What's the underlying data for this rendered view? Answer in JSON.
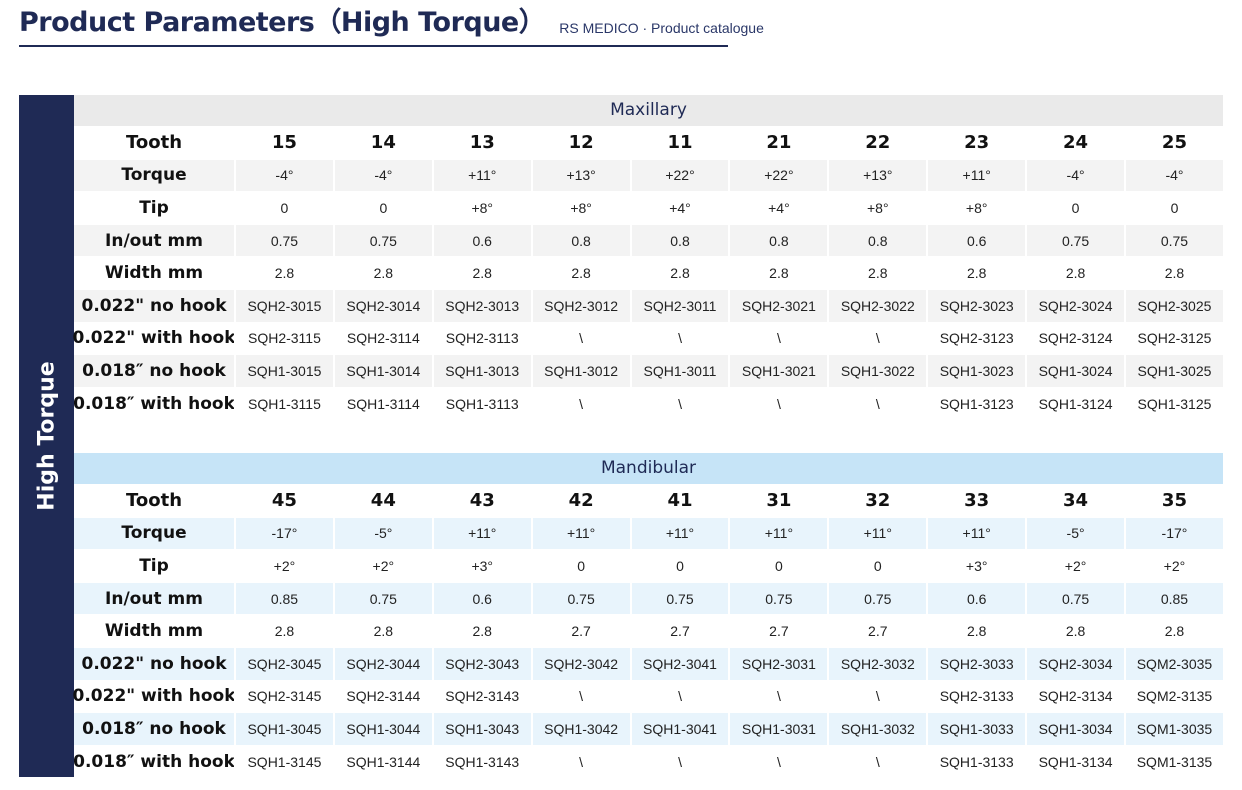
{
  "header": {
    "title": "Product Parameters（High Torque）",
    "subtitle": "RS MEDICO · Product catalogue"
  },
  "side_label": "High Torque",
  "maxillary": {
    "title": "Maxillary",
    "rows": [
      {
        "label": "Tooth",
        "cells": [
          "15",
          "14",
          "13",
          "12",
          "11",
          "21",
          "22",
          "23",
          "24",
          "25"
        ]
      },
      {
        "label": "Torque",
        "cells": [
          "-4°",
          "-4°",
          "+11°",
          "+13°",
          "+22°",
          "+22°",
          "+13°",
          "+11°",
          "-4°",
          "-4°"
        ]
      },
      {
        "label": "Tip",
        "cells": [
          "0",
          "0",
          "+8°",
          "+8°",
          "+4°",
          "+4°",
          "+8°",
          "+8°",
          "0",
          "0"
        ]
      },
      {
        "label": "In/out mm",
        "cells": [
          "0.75",
          "0.75",
          "0.6",
          "0.8",
          "0.8",
          "0.8",
          "0.8",
          "0.6",
          "0.75",
          "0.75"
        ]
      },
      {
        "label": "Width mm",
        "cells": [
          "2.8",
          "2.8",
          "2.8",
          "2.8",
          "2.8",
          "2.8",
          "2.8",
          "2.8",
          "2.8",
          "2.8"
        ]
      },
      {
        "label": "0.022\" no hook",
        "cells": [
          "SQH2-3015",
          "SQH2-3014",
          "SQH2-3013",
          "SQH2-3012",
          "SQH2-3011",
          "SQH2-3021",
          "SQH2-3022",
          "SQH2-3023",
          "SQH2-3024",
          "SQH2-3025"
        ]
      },
      {
        "label": "0.022\" with hook",
        "cells": [
          "SQH2-3115",
          "SQH2-3114",
          "SQH2-3113",
          "\\",
          "\\",
          "\\",
          "\\",
          "SQH2-3123",
          "SQH2-3124",
          "SQH2-3125"
        ]
      },
      {
        "label": "0.018″ no hook",
        "cells": [
          "SQH1-3015",
          "SQH1-3014",
          "SQH1-3013",
          "SQH1-3012",
          "SQH1-3011",
          "SQH1-3021",
          "SQH1-3022",
          "SQH1-3023",
          "SQH1-3024",
          "SQH1-3025"
        ]
      },
      {
        "label": "0.018″ with hook",
        "cells": [
          "SQH1-3115",
          "SQH1-3114",
          "SQH1-3113",
          "\\",
          "\\",
          "\\",
          "\\",
          "SQH1-3123",
          "SQH1-3124",
          "SQH1-3125"
        ]
      }
    ]
  },
  "mandibular": {
    "title": "Mandibular",
    "rows": [
      {
        "label": "Tooth",
        "cells": [
          "45",
          "44",
          "43",
          "42",
          "41",
          "31",
          "32",
          "33",
          "34",
          "35"
        ]
      },
      {
        "label": "Torque",
        "cells": [
          "-17°",
          "-5°",
          "+11°",
          "+11°",
          "+11°",
          "+11°",
          "+11°",
          "+11°",
          "-5°",
          "-17°"
        ]
      },
      {
        "label": "Tip",
        "cells": [
          "+2°",
          "+2°",
          "+3°",
          "0",
          "0",
          "0",
          "0",
          "+3°",
          "+2°",
          "+2°"
        ]
      },
      {
        "label": "In/out mm",
        "cells": [
          "0.85",
          "0.75",
          "0.6",
          "0.75",
          "0.75",
          "0.75",
          "0.75",
          "0.6",
          "0.75",
          "0.85"
        ]
      },
      {
        "label": "Width mm",
        "cells": [
          "2.8",
          "2.8",
          "2.8",
          "2.7",
          "2.7",
          "2.7",
          "2.7",
          "2.8",
          "2.8",
          "2.8"
        ]
      },
      {
        "label": "0.022\" no hook",
        "cells": [
          "SQH2-3045",
          "SQH2-3044",
          "SQH2-3043",
          "SQH2-3042",
          "SQH2-3041",
          "SQH2-3031",
          "SQH2-3032",
          "SQH2-3033",
          "SQH2-3034",
          "SQM2-3035"
        ]
      },
      {
        "label": "0.022\" with hook",
        "cells": [
          "SQH2-3145",
          "SQH2-3144",
          "SQH2-3143",
          "\\",
          "\\",
          "\\",
          "\\",
          "SQH2-3133",
          "SQH2-3134",
          "SQM2-3135"
        ]
      },
      {
        "label": "0.018″ no hook",
        "cells": [
          "SQH1-3045",
          "SQH1-3044",
          "SQH1-3043",
          "SQH1-3042",
          "SQH1-3041",
          "SQH1-3031",
          "SQH1-3032",
          "SQH1-3033",
          "SQH1-3034",
          "SQM1-3035"
        ]
      },
      {
        "label": "0.018″ with hook",
        "cells": [
          "SQH1-3145",
          "SQH1-3144",
          "SQH1-3143",
          "\\",
          "\\",
          "\\",
          "\\",
          "SQH1-3133",
          "SQH1-3134",
          "SQM1-3135"
        ]
      }
    ]
  }
}
